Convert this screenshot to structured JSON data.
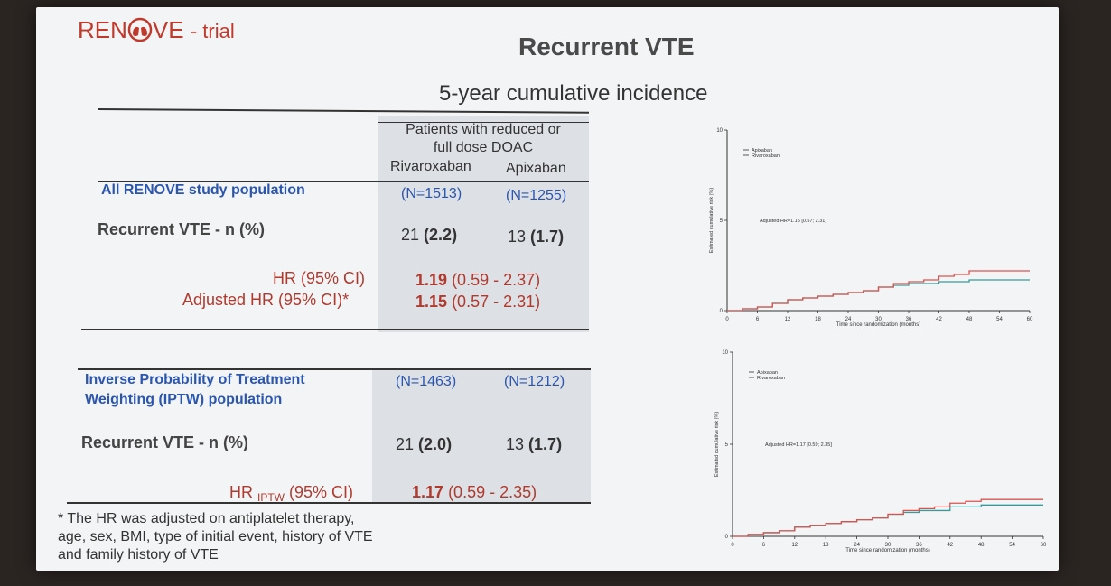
{
  "logo": {
    "text": "REN",
    "text2": "VE",
    "sub": "- trial"
  },
  "title": "Recurrent VTE",
  "subtitle": "5-year cumulative incidence",
  "table1": {
    "header_line1": "Patients with reduced or",
    "header_line2": "full dose DOAC",
    "col1": "Rivaroxaban",
    "col2": "Apixaban",
    "population": "All RENOVE study population",
    "n1": "(N=1513)",
    "n2": "(N=1255)",
    "row_label": "Recurrent VTE - n (%)",
    "riv_n": "21",
    "riv_pct": "(2.2)",
    "api_n": "13",
    "api_pct": "(1.7)",
    "hr_label": "HR (95% CI)",
    "hr_val": "1.19",
    "hr_ci": "(0.59 - 2.37)",
    "adj_label": "Adjusted HR (95% CI)*",
    "adj_val": "1.15",
    "adj_ci": "(0.57 - 2.31)"
  },
  "table2": {
    "population_line1": "Inverse Probability of Treatment",
    "population_line2": "Weighting (IPTW) population",
    "n1": "(N=1463)",
    "n2": "(N=1212)",
    "row_label": "Recurrent VTE - n (%)",
    "riv_n": "21",
    "riv_pct": "(2.0)",
    "api_n": "13",
    "api_pct": "(1.7)",
    "hr_label_main": "HR",
    "hr_label_sub": "IPTW",
    "hr_label_ci": "(95% CI)",
    "hr_val": "1.17",
    "hr_ci": "(0.59 - 2.35)"
  },
  "footnote": "* The HR was adjusted on antiplatelet therapy, age, sex, BMI, type of initial event, history of VTE and family history of VTE",
  "colors": {
    "rivaroxaban": "#d9534f",
    "apixaban": "#3a9a9a",
    "accent_red": "#b03a2e",
    "accent_blue": "#2a56b0"
  },
  "chart_data": [
    {
      "type": "line",
      "title": "",
      "xlabel": "Time since randomization (months)",
      "ylabel": "Estimated cumulative risk (%)",
      "xlim": [
        0,
        60
      ],
      "ylim": [
        0,
        10
      ],
      "xticks": [
        "0",
        "6",
        "12",
        "18",
        "24",
        "30",
        "36",
        "42",
        "48",
        "54",
        "60"
      ],
      "yticks": [
        "0",
        "5",
        "10"
      ],
      "annotation": "Adjusted HR=1.15 [0.57; 2.31]",
      "legend": [
        "Apixaban",
        "Rivaroxaban"
      ],
      "series": [
        {
          "name": "Apixaban",
          "color": "#3a9a9a",
          "x": [
            0,
            3,
            6,
            9,
            12,
            15,
            18,
            21,
            24,
            27,
            30,
            33,
            36,
            42,
            48,
            54,
            60
          ],
          "y": [
            0,
            0.1,
            0.2,
            0.4,
            0.6,
            0.7,
            0.8,
            0.9,
            1.0,
            1.1,
            1.3,
            1.4,
            1.5,
            1.6,
            1.7,
            1.7,
            1.7
          ]
        },
        {
          "name": "Rivaroxaban",
          "color": "#d9534f",
          "x": [
            0,
            3,
            6,
            9,
            12,
            15,
            18,
            21,
            24,
            27,
            30,
            33,
            36,
            39,
            42,
            45,
            48,
            54,
            60
          ],
          "y": [
            0,
            0.1,
            0.2,
            0.4,
            0.6,
            0.7,
            0.8,
            0.9,
            1.0,
            1.1,
            1.3,
            1.5,
            1.6,
            1.7,
            1.9,
            2.0,
            2.2,
            2.2,
            2.2
          ]
        }
      ]
    },
    {
      "type": "line",
      "title": "",
      "xlabel": "Time since randomization (months)",
      "ylabel": "Estimated cumulative risk (%)",
      "xlim": [
        0,
        60
      ],
      "ylim": [
        0,
        10
      ],
      "xticks": [
        "0",
        "6",
        "12",
        "18",
        "24",
        "30",
        "36",
        "42",
        "48",
        "54",
        "60"
      ],
      "yticks": [
        "0",
        "5",
        "10"
      ],
      "annotation": "Adjusted HR=1.17 [0.59; 2.35]",
      "legend": [
        "Apixaban",
        "Rivaroxaban"
      ],
      "series": [
        {
          "name": "Apixaban",
          "color": "#3a9a9a",
          "x": [
            0,
            3,
            6,
            9,
            12,
            15,
            18,
            21,
            24,
            27,
            30,
            33,
            36,
            42,
            48,
            54,
            60
          ],
          "y": [
            0,
            0.1,
            0.2,
            0.3,
            0.5,
            0.6,
            0.7,
            0.8,
            0.9,
            1.0,
            1.2,
            1.3,
            1.4,
            1.6,
            1.7,
            1.7,
            1.7
          ]
        },
        {
          "name": "Rivaroxaban",
          "color": "#d9534f",
          "x": [
            0,
            3,
            6,
            9,
            12,
            15,
            18,
            21,
            24,
            27,
            30,
            33,
            36,
            39,
            42,
            45,
            48,
            54,
            60
          ],
          "y": [
            0,
            0.1,
            0.2,
            0.3,
            0.5,
            0.6,
            0.7,
            0.8,
            0.9,
            1.0,
            1.2,
            1.4,
            1.5,
            1.6,
            1.8,
            1.9,
            2.0,
            2.0,
            2.0
          ]
        }
      ]
    }
  ]
}
